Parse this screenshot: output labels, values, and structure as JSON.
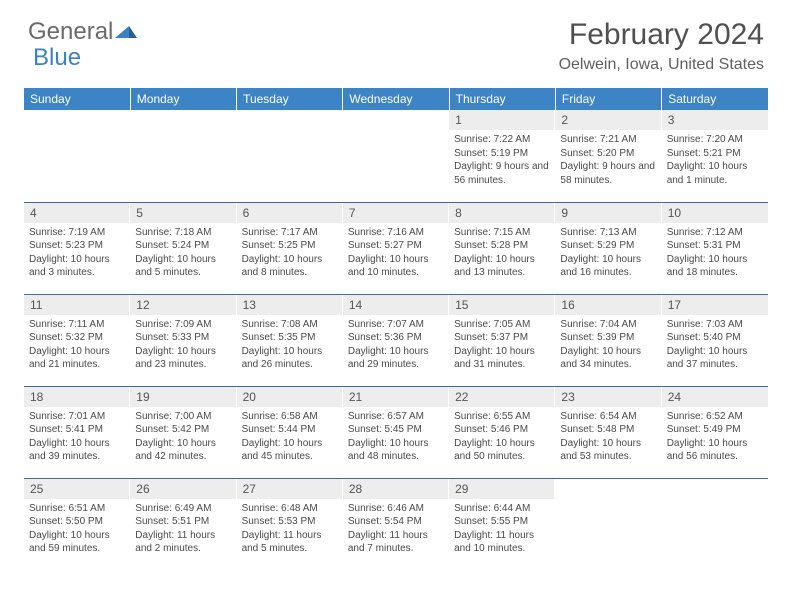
{
  "logo": {
    "general": "General",
    "blue": "Blue"
  },
  "title": "February 2024",
  "location": "Oelwein, Iowa, United States",
  "day_headers": [
    "Sunday",
    "Monday",
    "Tuesday",
    "Wednesday",
    "Thursday",
    "Friday",
    "Saturday"
  ],
  "colors": {
    "header_bg": "#3c84c6",
    "header_text": "#ffffff",
    "daynum_bg": "#ededed",
    "border": "#3c6a9a",
    "logo_blue": "#3b82c4",
    "logo_gray": "#6a6a6a"
  },
  "weeks": [
    [
      {
        "num": "",
        "sunrise": "",
        "sunset": "",
        "daylight": ""
      },
      {
        "num": "",
        "sunrise": "",
        "sunset": "",
        "daylight": ""
      },
      {
        "num": "",
        "sunrise": "",
        "sunset": "",
        "daylight": ""
      },
      {
        "num": "",
        "sunrise": "",
        "sunset": "",
        "daylight": ""
      },
      {
        "num": "1",
        "sunrise": "Sunrise: 7:22 AM",
        "sunset": "Sunset: 5:19 PM",
        "daylight": "Daylight: 9 hours and 56 minutes."
      },
      {
        "num": "2",
        "sunrise": "Sunrise: 7:21 AM",
        "sunset": "Sunset: 5:20 PM",
        "daylight": "Daylight: 9 hours and 58 minutes."
      },
      {
        "num": "3",
        "sunrise": "Sunrise: 7:20 AM",
        "sunset": "Sunset: 5:21 PM",
        "daylight": "Daylight: 10 hours and 1 minute."
      }
    ],
    [
      {
        "num": "4",
        "sunrise": "Sunrise: 7:19 AM",
        "sunset": "Sunset: 5:23 PM",
        "daylight": "Daylight: 10 hours and 3 minutes."
      },
      {
        "num": "5",
        "sunrise": "Sunrise: 7:18 AM",
        "sunset": "Sunset: 5:24 PM",
        "daylight": "Daylight: 10 hours and 5 minutes."
      },
      {
        "num": "6",
        "sunrise": "Sunrise: 7:17 AM",
        "sunset": "Sunset: 5:25 PM",
        "daylight": "Daylight: 10 hours and 8 minutes."
      },
      {
        "num": "7",
        "sunrise": "Sunrise: 7:16 AM",
        "sunset": "Sunset: 5:27 PM",
        "daylight": "Daylight: 10 hours and 10 minutes."
      },
      {
        "num": "8",
        "sunrise": "Sunrise: 7:15 AM",
        "sunset": "Sunset: 5:28 PM",
        "daylight": "Daylight: 10 hours and 13 minutes."
      },
      {
        "num": "9",
        "sunrise": "Sunrise: 7:13 AM",
        "sunset": "Sunset: 5:29 PM",
        "daylight": "Daylight: 10 hours and 16 minutes."
      },
      {
        "num": "10",
        "sunrise": "Sunrise: 7:12 AM",
        "sunset": "Sunset: 5:31 PM",
        "daylight": "Daylight: 10 hours and 18 minutes."
      }
    ],
    [
      {
        "num": "11",
        "sunrise": "Sunrise: 7:11 AM",
        "sunset": "Sunset: 5:32 PM",
        "daylight": "Daylight: 10 hours and 21 minutes."
      },
      {
        "num": "12",
        "sunrise": "Sunrise: 7:09 AM",
        "sunset": "Sunset: 5:33 PM",
        "daylight": "Daylight: 10 hours and 23 minutes."
      },
      {
        "num": "13",
        "sunrise": "Sunrise: 7:08 AM",
        "sunset": "Sunset: 5:35 PM",
        "daylight": "Daylight: 10 hours and 26 minutes."
      },
      {
        "num": "14",
        "sunrise": "Sunrise: 7:07 AM",
        "sunset": "Sunset: 5:36 PM",
        "daylight": "Daylight: 10 hours and 29 minutes."
      },
      {
        "num": "15",
        "sunrise": "Sunrise: 7:05 AM",
        "sunset": "Sunset: 5:37 PM",
        "daylight": "Daylight: 10 hours and 31 minutes."
      },
      {
        "num": "16",
        "sunrise": "Sunrise: 7:04 AM",
        "sunset": "Sunset: 5:39 PM",
        "daylight": "Daylight: 10 hours and 34 minutes."
      },
      {
        "num": "17",
        "sunrise": "Sunrise: 7:03 AM",
        "sunset": "Sunset: 5:40 PM",
        "daylight": "Daylight: 10 hours and 37 minutes."
      }
    ],
    [
      {
        "num": "18",
        "sunrise": "Sunrise: 7:01 AM",
        "sunset": "Sunset: 5:41 PM",
        "daylight": "Daylight: 10 hours and 39 minutes."
      },
      {
        "num": "19",
        "sunrise": "Sunrise: 7:00 AM",
        "sunset": "Sunset: 5:42 PM",
        "daylight": "Daylight: 10 hours and 42 minutes."
      },
      {
        "num": "20",
        "sunrise": "Sunrise: 6:58 AM",
        "sunset": "Sunset: 5:44 PM",
        "daylight": "Daylight: 10 hours and 45 minutes."
      },
      {
        "num": "21",
        "sunrise": "Sunrise: 6:57 AM",
        "sunset": "Sunset: 5:45 PM",
        "daylight": "Daylight: 10 hours and 48 minutes."
      },
      {
        "num": "22",
        "sunrise": "Sunrise: 6:55 AM",
        "sunset": "Sunset: 5:46 PM",
        "daylight": "Daylight: 10 hours and 50 minutes."
      },
      {
        "num": "23",
        "sunrise": "Sunrise: 6:54 AM",
        "sunset": "Sunset: 5:48 PM",
        "daylight": "Daylight: 10 hours and 53 minutes."
      },
      {
        "num": "24",
        "sunrise": "Sunrise: 6:52 AM",
        "sunset": "Sunset: 5:49 PM",
        "daylight": "Daylight: 10 hours and 56 minutes."
      }
    ],
    [
      {
        "num": "25",
        "sunrise": "Sunrise: 6:51 AM",
        "sunset": "Sunset: 5:50 PM",
        "daylight": "Daylight: 10 hours and 59 minutes."
      },
      {
        "num": "26",
        "sunrise": "Sunrise: 6:49 AM",
        "sunset": "Sunset: 5:51 PM",
        "daylight": "Daylight: 11 hours and 2 minutes."
      },
      {
        "num": "27",
        "sunrise": "Sunrise: 6:48 AM",
        "sunset": "Sunset: 5:53 PM",
        "daylight": "Daylight: 11 hours and 5 minutes."
      },
      {
        "num": "28",
        "sunrise": "Sunrise: 6:46 AM",
        "sunset": "Sunset: 5:54 PM",
        "daylight": "Daylight: 11 hours and 7 minutes."
      },
      {
        "num": "29",
        "sunrise": "Sunrise: 6:44 AM",
        "sunset": "Sunset: 5:55 PM",
        "daylight": "Daylight: 11 hours and 10 minutes."
      },
      {
        "num": "",
        "sunrise": "",
        "sunset": "",
        "daylight": ""
      },
      {
        "num": "",
        "sunrise": "",
        "sunset": "",
        "daylight": ""
      }
    ]
  ]
}
